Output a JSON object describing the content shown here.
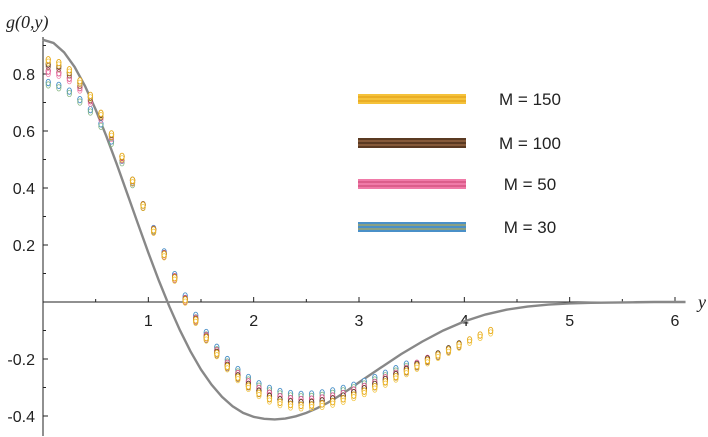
{
  "chart_data": {
    "type": "scatter",
    "title": "",
    "xlabel": "y",
    "ylabel": "g(0,y)",
    "xlim": [
      0,
      6.1
    ],
    "ylim": [
      -0.47,
      0.93
    ],
    "x_ticks": [
      1,
      2,
      3,
      4,
      5,
      6
    ],
    "x_tick_labels": [
      "1",
      "2",
      "3",
      "4",
      "5",
      "6"
    ],
    "y_ticks": [
      -0.4,
      -0.2,
      0.2,
      0.4,
      0.6,
      0.8
    ],
    "y_tick_labels": [
      "-0.4",
      "-0.2",
      "0.2",
      "0.4",
      "0.6",
      "0.8"
    ],
    "grid": false,
    "legend_position": "upper-right",
    "reference_curve": {
      "color": "#888888",
      "x": [
        0,
        0.1,
        0.2,
        0.3,
        0.4,
        0.5,
        0.6,
        0.7,
        0.8,
        0.9,
        1.0,
        1.1,
        1.2,
        1.3,
        1.4,
        1.5,
        1.6,
        1.7,
        1.8,
        1.9,
        2.0,
        2.1,
        2.2,
        2.3,
        2.4,
        2.5,
        2.6,
        2.7,
        2.8,
        2.9,
        3.0,
        3.2,
        3.4,
        3.6,
        3.8,
        4.0,
        4.2,
        4.4,
        4.6,
        4.8,
        5.0,
        5.2,
        5.4,
        5.6,
        5.8,
        6.0,
        6.1
      ],
      "y": [
        0.92,
        0.909,
        0.876,
        0.825,
        0.757,
        0.675,
        0.583,
        0.484,
        0.38,
        0.276,
        0.173,
        0.075,
        -0.016,
        -0.099,
        -0.173,
        -0.237,
        -0.29,
        -0.333,
        -0.366,
        -0.389,
        -0.403,
        -0.41,
        -0.412,
        -0.409,
        -0.401,
        -0.389,
        -0.373,
        -0.354,
        -0.332,
        -0.308,
        -0.282,
        -0.232,
        -0.183,
        -0.139,
        -0.1,
        -0.068,
        -0.044,
        -0.027,
        -0.016,
        -0.009,
        -0.005,
        -0.003,
        -0.002,
        -0.001,
        0.0,
        0.0,
        0.0
      ]
    },
    "series": [
      {
        "name": "M = 150",
        "color": "#e6a817",
        "stroke": "#f2c33a",
        "x": [
          0.05,
          0.15,
          0.25,
          0.35,
          0.45,
          0.55,
          0.65,
          0.75,
          0.85,
          0.95,
          1.05,
          1.15,
          1.25,
          1.35,
          1.45,
          1.55,
          1.65,
          1.75,
          1.85,
          1.95,
          2.05,
          2.15,
          2.25,
          2.35,
          2.45,
          2.55,
          2.65,
          2.75,
          2.85,
          2.95,
          3.05,
          3.15,
          3.25,
          3.35,
          3.45,
          3.55,
          3.65,
          3.75,
          3.85,
          3.95,
          4.05,
          4.15,
          4.25
        ],
        "y": [
          0.85,
          0.84,
          0.815,
          0.776,
          0.725,
          0.662,
          0.59,
          0.511,
          0.427,
          0.34,
          0.253,
          0.167,
          0.085,
          0.008,
          -0.063,
          -0.125,
          -0.18,
          -0.226,
          -0.264,
          -0.295,
          -0.32,
          -0.339,
          -0.352,
          -0.36,
          -0.363,
          -0.362,
          -0.358,
          -0.35,
          -0.34,
          -0.327,
          -0.313,
          -0.297,
          -0.28,
          -0.262,
          -0.243,
          -0.224,
          -0.205,
          -0.186,
          -0.168,
          -0.15,
          -0.133,
          -0.116,
          -0.1
        ]
      },
      {
        "name": "M = 100",
        "color": "#5a3a22",
        "stroke": "#8a5a3a",
        "x": [
          0.05,
          0.15,
          0.25,
          0.35,
          0.45,
          0.55,
          0.65,
          0.75,
          0.85,
          0.95,
          1.05,
          1.15,
          1.25,
          1.35,
          1.45,
          1.55,
          1.65,
          1.75,
          1.85,
          1.95,
          2.05,
          2.15,
          2.25,
          2.35,
          2.45,
          2.55,
          2.65,
          2.75,
          2.85,
          2.95,
          3.05,
          3.15,
          3.25,
          3.35,
          3.45,
          3.55,
          3.65,
          3.75,
          3.85,
          3.95
        ],
        "y": [
          0.835,
          0.828,
          0.805,
          0.768,
          0.719,
          0.658,
          0.588,
          0.51,
          0.427,
          0.341,
          0.254,
          0.168,
          0.086,
          0.009,
          -0.061,
          -0.123,
          -0.177,
          -0.222,
          -0.259,
          -0.289,
          -0.313,
          -0.331,
          -0.343,
          -0.35,
          -0.353,
          -0.352,
          -0.347,
          -0.34,
          -0.33,
          -0.318,
          -0.304,
          -0.289,
          -0.272,
          -0.255,
          -0.237,
          -0.219,
          -0.2,
          -0.182,
          -0.164,
          -0.147
        ]
      },
      {
        "name": "M = 50",
        "color": "#d9538a",
        "stroke": "#f07aa8",
        "x": [
          0.05,
          0.15,
          0.25,
          0.35,
          0.45,
          0.55,
          0.65,
          0.75,
          0.85,
          0.95,
          1.05,
          1.15,
          1.25,
          1.35,
          1.45,
          1.55,
          1.65,
          1.75,
          1.85,
          1.95,
          2.05,
          2.15,
          2.25,
          2.35,
          2.45,
          2.55,
          2.65,
          2.75,
          2.85,
          2.95,
          3.05,
          3.15,
          3.25,
          3.35,
          3.45,
          3.55,
          3.65
        ],
        "y": [
          0.81,
          0.804,
          0.785,
          0.752,
          0.706,
          0.649,
          0.582,
          0.507,
          0.426,
          0.341,
          0.255,
          0.17,
          0.089,
          0.012,
          -0.057,
          -0.118,
          -0.171,
          -0.215,
          -0.251,
          -0.28,
          -0.303,
          -0.32,
          -0.332,
          -0.339,
          -0.342,
          -0.341,
          -0.337,
          -0.33,
          -0.321,
          -0.309,
          -0.296,
          -0.282,
          -0.266,
          -0.25,
          -0.233,
          -0.215,
          -0.198
        ]
      },
      {
        "name": "M = 30",
        "color": "#4a90c8",
        "stroke": "#7fb27a",
        "x": [
          0.05,
          0.15,
          0.25,
          0.35,
          0.45,
          0.55,
          0.65,
          0.75,
          0.85,
          0.95,
          1.05,
          1.15,
          1.25,
          1.35,
          1.45,
          1.55,
          1.65,
          1.75,
          1.85,
          1.95,
          2.05,
          2.15,
          2.25,
          2.35,
          2.45,
          2.55,
          2.65,
          2.75,
          2.85,
          2.95,
          3.05,
          3.15,
          3.25,
          3.35,
          3.45
        ],
        "y": [
          0.77,
          0.76,
          0.74,
          0.71,
          0.675,
          0.625,
          0.565,
          0.497,
          0.42,
          0.34,
          0.258,
          0.176,
          0.096,
          0.021,
          -0.047,
          -0.107,
          -0.159,
          -0.202,
          -0.237,
          -0.265,
          -0.287,
          -0.303,
          -0.314,
          -0.321,
          -0.324,
          -0.323,
          -0.319,
          -0.312,
          -0.303,
          -0.292,
          -0.279,
          -0.265,
          -0.25,
          -0.234,
          -0.218
        ]
      }
    ],
    "legend": [
      {
        "label": "M = 150",
        "fill": "#f5c23a",
        "line": "#e09a10"
      },
      {
        "label": "M = 100",
        "fill": "#5a3a22",
        "line": "#b07850"
      },
      {
        "label": "M = 50",
        "fill": "#f07aa8",
        "line": "#c8406e"
      },
      {
        "label": "M = 30",
        "fill": "#4a90c8",
        "line": "#c8b040"
      }
    ]
  }
}
